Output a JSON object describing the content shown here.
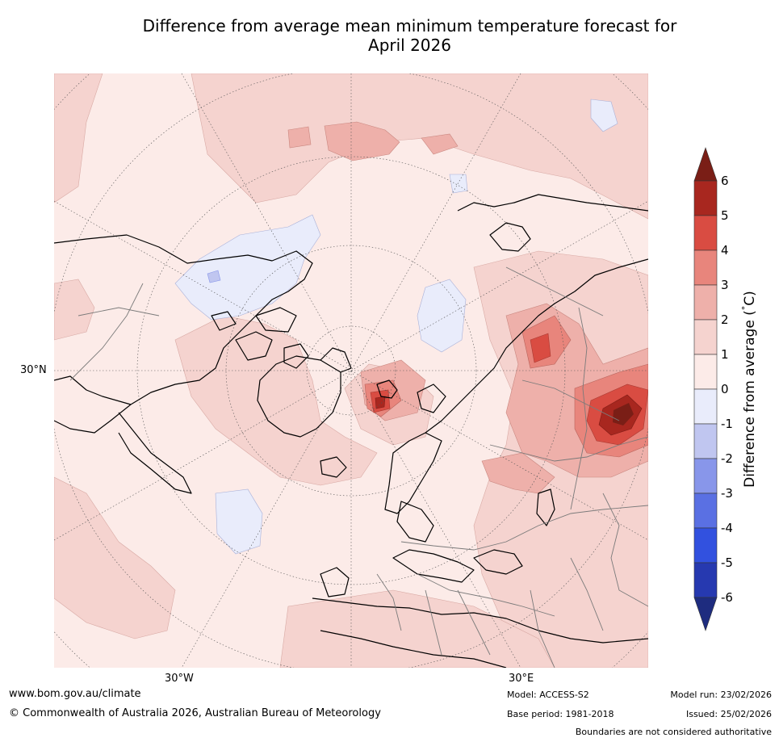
{
  "title": {
    "line1": "Difference from average mean minimum temperature forecast for",
    "line2": "April 2026"
  },
  "map": {
    "projection": "north-polar-stereographic",
    "labels": {
      "lat_30n": "30°N",
      "lon_30w": "30°W",
      "lon_30e": "30°E"
    }
  },
  "colorbar": {
    "label": "Difference from average (°C)",
    "label_text": "Difference from average (",
    "label_sup": "°",
    "label_end": "C)",
    "ticks": [
      "6",
      "5",
      "4",
      "3",
      "2",
      "1",
      "0",
      "-1",
      "-2",
      "-3",
      "-4",
      "-5",
      "-6"
    ],
    "colors": {
      "above6": "#7a1e16",
      "5to6": "#a8271f",
      "4to5": "#d94c42",
      "3to4": "#e8857c",
      "2to3": "#eeb0aa",
      "1to2": "#f5d3cf",
      "0to1": "#fcebe8",
      "m1to0": "#e9ecfb",
      "m2tom1": "#c0c6f0",
      "m3tom2": "#8896ea",
      "m4tom3": "#5a70e3",
      "m5tom4": "#3251df",
      "m6tom5": "#2639b0",
      "below_m6": "#1e2c7f"
    }
  },
  "footer": {
    "website": "www.bom.gov.au/climate",
    "copyright": "© Commonwealth of Australia 2026, Australian Bureau of Meteorology",
    "model": "Model: ACCESS-S2",
    "base_period": "Base period: 1981-2018",
    "model_run": "Model run: 23/02/2026",
    "issued": "Issued: 25/02/2026",
    "disclaimer": "Boundaries are not considered authoritative"
  }
}
